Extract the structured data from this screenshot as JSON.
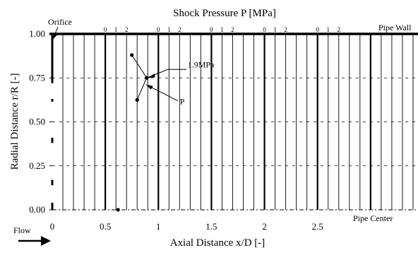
{
  "chart_data": {
    "type": "line",
    "title": "Shock Pressure  P [MPa]",
    "xlabel": "Axial Distance  x/D [-]",
    "ylabel": "Radial Distance  r/R [-]",
    "xlim": [
      0,
      3.5
    ],
    "ylim": [
      0,
      1
    ],
    "x_ticks": [
      {
        "value": 0,
        "label": "0"
      },
      {
        "value": 0.5,
        "label": "0.5"
      },
      {
        "value": 1,
        "label": "1"
      },
      {
        "value": 1.5,
        "label": "1.5"
      },
      {
        "value": 2,
        "label": "2"
      },
      {
        "value": 2.5,
        "label": "2.5"
      }
    ],
    "y_ticks": [
      {
        "value": 0,
        "label": "0.00"
      },
      {
        "value": 0.25,
        "label": "0.25"
      },
      {
        "value": 0.5,
        "label": "0.50"
      },
      {
        "value": 0.75,
        "label": "0.75"
      },
      {
        "value": 1,
        "label": "1.00"
      }
    ],
    "pressure_scale_groups": [
      {
        "x": 0.5,
        "labels": [
          "0",
          "1",
          "2"
        ]
      },
      {
        "x": 1.0,
        "labels": [
          "0",
          "1",
          "2"
        ]
      },
      {
        "x": 1.5,
        "labels": [
          "0",
          "1",
          "2"
        ]
      },
      {
        "x": 2.0,
        "labels": [
          "0",
          "1",
          "2"
        ]
      },
      {
        "x": 2.5,
        "labels": [
          "0",
          "1",
          "2"
        ]
      }
    ],
    "wall_label": "Pipe Wall",
    "center_label": "Pipe Center",
    "orifice_label": "Orifice",
    "flow_label": "Flow",
    "series": [
      {
        "values": [
          {
            "x": 0.75,
            "y": 0.88
          },
          {
            "x": 0.89,
            "y": 0.75
          },
          {
            "x": 0.8,
            "y": 0.625
          }
        ]
      },
      {
        "values": [
          {
            "x": 0.62,
            "y": 0.0
          }
        ]
      }
    ],
    "annotations": [
      {
        "text": "1.9MPa",
        "x": 0.89,
        "y": 0.75
      },
      {
        "text": "P",
        "x": 0.87,
        "y": 0.72
      }
    ],
    "grid": true
  }
}
